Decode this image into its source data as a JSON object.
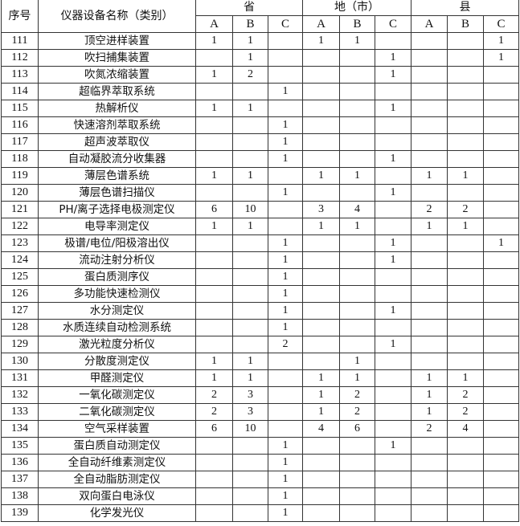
{
  "header": {
    "index_label": "序号",
    "name_label": "仪器设备名称（类别）",
    "groups": [
      "省",
      "地（市）",
      "县"
    ],
    "sub_columns": [
      "A",
      "B",
      "C"
    ]
  },
  "rows": [
    [
      "111",
      "顶空进样装置",
      "1",
      "1",
      "",
      "1",
      "1",
      "",
      "",
      "",
      "1"
    ],
    [
      "112",
      "吹扫捕集装置",
      "",
      "1",
      "",
      "",
      "",
      "1",
      "",
      "",
      "1"
    ],
    [
      "113",
      "吹氮浓缩装置",
      "1",
      "2",
      "",
      "",
      "",
      "1",
      "",
      "",
      ""
    ],
    [
      "114",
      "超临界萃取系统",
      "",
      "",
      "1",
      "",
      "",
      "",
      "",
      "",
      ""
    ],
    [
      "115",
      "热解析仪",
      "1",
      "1",
      "",
      "",
      "",
      "1",
      "",
      "",
      ""
    ],
    [
      "116",
      "快速溶剂萃取系统",
      "",
      "",
      "1",
      "",
      "",
      "",
      "",
      "",
      ""
    ],
    [
      "117",
      "超声波萃取仪",
      "",
      "",
      "1",
      "",
      "",
      "",
      "",
      "",
      ""
    ],
    [
      "118",
      "自动凝胶流分收集器",
      "",
      "",
      "1",
      "",
      "",
      "1",
      "",
      "",
      ""
    ],
    [
      "119",
      "薄层色谱系统",
      "1",
      "1",
      "",
      "1",
      "1",
      "",
      "1",
      "1",
      ""
    ],
    [
      "120",
      "薄层色谱扫描仪",
      "",
      "",
      "1",
      "",
      "",
      "1",
      "",
      "",
      ""
    ],
    [
      "121",
      "PH/离子选择电极测定仪",
      "6",
      "10",
      "",
      "3",
      "4",
      "",
      "2",
      "2",
      ""
    ],
    [
      "122",
      "电导率测定仪",
      "1",
      "1",
      "",
      "1",
      "1",
      "",
      "1",
      "1",
      ""
    ],
    [
      "123",
      "极谱/电位/阳极溶出仪",
      "",
      "",
      "1",
      "",
      "",
      "1",
      "",
      "",
      "1"
    ],
    [
      "124",
      "流动注射分析仪",
      "",
      "",
      "1",
      "",
      "",
      "1",
      "",
      "",
      ""
    ],
    [
      "125",
      "蛋白质测序仪",
      "",
      "",
      "1",
      "",
      "",
      "",
      "",
      "",
      ""
    ],
    [
      "126",
      "多功能快速检测仪",
      "",
      "",
      "1",
      "",
      "",
      "",
      "",
      "",
      ""
    ],
    [
      "127",
      "水分测定仪",
      "",
      "",
      "1",
      "",
      "",
      "1",
      "",
      "",
      ""
    ],
    [
      "128",
      "水质连续自动检测系统",
      "",
      "",
      "1",
      "",
      "",
      "",
      "",
      "",
      ""
    ],
    [
      "129",
      "激光粒度分析仪",
      "",
      "",
      "2",
      "",
      "",
      "1",
      "",
      "",
      ""
    ],
    [
      "130",
      "分散度测定仪",
      "1",
      "1",
      "",
      "",
      "1",
      "",
      "",
      "",
      ""
    ],
    [
      "131",
      "甲醛测定仪",
      "1",
      "1",
      "",
      "1",
      "1",
      "",
      "1",
      "1",
      ""
    ],
    [
      "132",
      "一氧化碳测定仪",
      "2",
      "3",
      "",
      "1",
      "2",
      "",
      "1",
      "2",
      ""
    ],
    [
      "133",
      "二氧化碳测定仪",
      "2",
      "3",
      "",
      "1",
      "2",
      "",
      "1",
      "2",
      ""
    ],
    [
      "134",
      "空气采样装置",
      "6",
      "10",
      "",
      "4",
      "6",
      "",
      "2",
      "4",
      ""
    ],
    [
      "135",
      "蛋白质自动测定仪",
      "",
      "",
      "1",
      "",
      "",
      "1",
      "",
      "",
      ""
    ],
    [
      "136",
      "全自动纤维素测定仪",
      "",
      "",
      "1",
      "",
      "",
      "",
      "",
      "",
      ""
    ],
    [
      "137",
      "全自动脂肪测定仪",
      "",
      "",
      "1",
      "",
      "",
      "",
      "",
      "",
      ""
    ],
    [
      "138",
      "双向蛋白电泳仪",
      "",
      "",
      "1",
      "",
      "",
      "",
      "",
      "",
      ""
    ],
    [
      "139",
      "化学发光仪",
      "",
      "",
      "1",
      "",
      "",
      "",
      "",
      "",
      ""
    ]
  ]
}
